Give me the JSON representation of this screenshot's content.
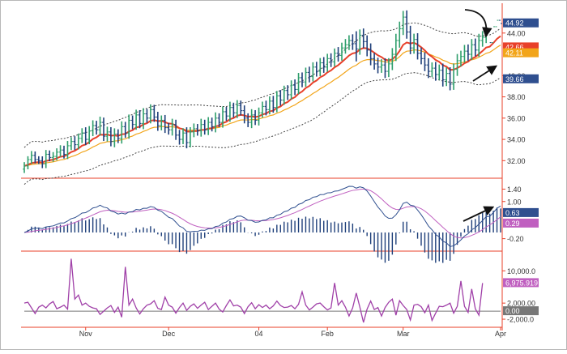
{
  "chart_data": [
    {
      "panel": "price",
      "type": "line",
      "title": "",
      "ylim": [
        30.5,
        46.5
      ],
      "y_ticks": [
        "32.00",
        "34.00",
        "36.00",
        "38.00",
        "40.00",
        "44.00"
      ],
      "x_labels": [
        "Nov",
        "Dec",
        "04",
        "Feb",
        "Mar",
        "Apr"
      ],
      "x_label_bars": [
        17,
        40,
        65,
        84,
        105,
        132
      ],
      "grid": false,
      "value_tags": [
        {
          "text": "44.92",
          "color": "#2f4f8f"
        },
        {
          "text": "42.66",
          "color": "#e8402a"
        },
        {
          "text": "42.11",
          "color": "#f2a51a"
        },
        {
          "text": "39.66",
          "color": "#2f4f8f"
        }
      ],
      "series": [
        {
          "type": "ohlc",
          "up_color": "#2e9e6b",
          "down_color": "#1e3f7a",
          "close": [
            31.5,
            32.1,
            32.5,
            32.1,
            32.0,
            31.7,
            32.6,
            32.3,
            32.4,
            32.8,
            33.0,
            32.6,
            33.4,
            33.8,
            33.5,
            34.1,
            34.6,
            34.0,
            34.8,
            35.3,
            34.9,
            35.6,
            34.3,
            34.7,
            33.8,
            34.5,
            34.1,
            35.2,
            34.6,
            35.8,
            35.4,
            36.3,
            35.5,
            36.4,
            36.0,
            36.8,
            36.1,
            35.3,
            35.8,
            35.1,
            34.9,
            35.4,
            34.4,
            34.0,
            34.6,
            33.7,
            34.7,
            35.0,
            34.8,
            35.4,
            34.9,
            35.6,
            35.2,
            36.0,
            35.6,
            36.6,
            36.2,
            37.0,
            36.5,
            37.2,
            36.7,
            36.0,
            35.6,
            36.3,
            35.8,
            36.5,
            37.1,
            36.8,
            37.6,
            37.0,
            38.1,
            37.7,
            38.6,
            38.2,
            39.1,
            38.7,
            39.8,
            39.4,
            40.3,
            39.9,
            40.8,
            40.4,
            41.2,
            40.8,
            41.6,
            41.3,
            42.1,
            41.9,
            42.6,
            42.9,
            43.3,
            43.0,
            42.5,
            43.8,
            43.2,
            42.4,
            41.6,
            41.1,
            40.8,
            41.0,
            40.4,
            41.1,
            42.0,
            43.3,
            44.4,
            45.5,
            44.1,
            42.6,
            43.4,
            42.1,
            41.6,
            41.0,
            40.4,
            40.7,
            40.1,
            40.5,
            39.6,
            40.2,
            39.2,
            40.6,
            41.4,
            41.8,
            42.3,
            42.0,
            42.9,
            42.4,
            43.3,
            43.6,
            44.1,
            43.1,
            44.6,
            45.2,
            44.9
          ],
          "range": [
            0.8,
            0.7,
            0.9,
            0.8,
            0.7,
            0.9,
            0.9,
            0.8,
            0.9,
            0.8,
            1.0,
            0.9,
            1.0,
            0.9,
            1.1,
            1.0,
            1.0,
            1.2,
            1.0,
            1.1,
            1.0,
            1.2,
            1.0,
            1.1,
            1.0,
            1.2,
            1.0,
            1.1,
            1.0,
            1.2,
            1.0,
            1.1,
            1.0,
            1.2,
            1.0,
            1.1,
            1.0,
            1.1,
            1.0,
            1.1,
            1.0,
            1.2,
            1.0,
            1.1,
            1.0,
            1.2,
            1.0,
            1.1,
            1.0,
            1.2,
            1.0,
            1.1,
            1.0,
            1.2,
            1.0,
            1.1,
            1.0,
            1.2,
            1.0,
            1.1,
            1.0,
            1.1,
            1.0,
            1.2,
            1.0,
            1.1,
            1.0,
            1.2,
            1.0,
            1.1,
            1.0,
            1.2,
            1.0,
            1.1,
            1.0,
            1.2,
            1.0,
            1.1,
            1.0,
            1.2,
            1.0,
            1.1,
            1.0,
            1.2,
            1.0,
            1.1,
            1.0,
            1.3,
            1.1,
            1.2,
            1.1,
            1.3,
            2.6,
            1.2,
            1.4,
            1.3,
            1.4,
            1.2,
            1.3,
            1.2,
            1.4,
            1.2,
            1.3,
            1.4,
            1.5,
            1.3,
            1.4,
            1.3,
            1.2,
            1.3,
            1.2,
            1.3,
            1.4,
            1.2,
            1.3,
            1.2,
            1.4,
            1.3,
            1.3,
            1.2,
            1.4,
            1.2,
            1.3,
            1.4,
            1.2,
            1.3,
            1.4,
            1.3,
            1.2
          ]
        },
        {
          "name": "",
          "type": "line",
          "color": "#e8402a",
          "role": "fast-ma"
        },
        {
          "name": "",
          "type": "line",
          "color": "#f2a51a",
          "role": "slow-ma"
        },
        {
          "name": "",
          "type": "line",
          "color": "#444444",
          "role": "envelope-upper"
        },
        {
          "name": "",
          "type": "line",
          "color": "#444444",
          "role": "envelope-lower"
        }
      ],
      "annotations": [
        "curved-arrow-down",
        "arrow-up-right",
        "arrow-up-right"
      ]
    },
    {
      "panel": "macd",
      "type": "line",
      "ylim": [
        -0.55,
        1.7
      ],
      "y_ticks": [
        "1.40",
        "1.00",
        "-0.20"
      ],
      "value_tags": [
        {
          "text": "0.63",
          "color": "#2f4f8f"
        },
        {
          "text": "0.29",
          "color": "#c060c0"
        }
      ],
      "series": [
        {
          "name": "",
          "type": "line",
          "color": "#2f4f8f"
        },
        {
          "name": "",
          "type": "line",
          "color": "#c060c0"
        },
        {
          "name": "",
          "type": "bar",
          "color": "#1e3f7a"
        }
      ],
      "annotations": [
        "arrow-up-right"
      ]
    },
    {
      "panel": "volume-oscillator",
      "type": "line",
      "ylim": [
        -3600,
        14500
      ],
      "y_ticks": [
        "10,000.0",
        "2,000.00",
        "-2,000.0"
      ],
      "value_tags": [
        {
          "text": "6,975.919",
          "color": "#c060c0"
        },
        {
          "text": "0.00",
          "color": "#777777"
        }
      ],
      "series": [
        {
          "name": "",
          "type": "line",
          "color": "#a040a8",
          "values": [
            2000,
            2200,
            800,
            -600,
            1000,
            1500,
            800,
            1800,
            2400,
            600,
            1000,
            1500,
            500,
            13000,
            3000,
            4000,
            1500,
            2000,
            1200,
            800,
            600,
            -800,
            0,
            800,
            1400,
            -300,
            1000,
            -1500,
            11000,
            1500,
            3000,
            800,
            -700,
            600,
            1500,
            1800,
            2600,
            700,
            400,
            3500,
            1500,
            1000,
            -500,
            900,
            2000,
            200,
            1200,
            1800,
            700,
            1500,
            2200,
            400,
            1200,
            2000,
            500,
            -200,
            1400,
            2800,
            1300,
            1500,
            1000,
            -600,
            1100,
            2100,
            600,
            1600,
            900,
            1500,
            600,
            1300,
            2500,
            1400,
            900,
            1000,
            1400,
            600,
            1700,
            4800,
            1500,
            300,
            1000,
            1800,
            2000,
            1100,
            300,
            800,
            7000,
            1500,
            2600,
            1000,
            -1200,
            800,
            4500,
            1000,
            -2800,
            500,
            2500,
            400,
            900,
            -1200,
            900,
            2200,
            3000,
            -1000,
            2600,
            1400,
            400,
            -2200,
            1500,
            1700,
            1100,
            -400,
            1500,
            -2300,
            -500,
            1200,
            1100,
            1500,
            2000,
            -500,
            1200,
            7500,
            1200,
            -300,
            5500,
            600,
            -1000,
            6975.919
          ]
        },
        {
          "name": "",
          "type": "line",
          "color": "#777777",
          "role": "zero-line"
        }
      ]
    }
  ]
}
